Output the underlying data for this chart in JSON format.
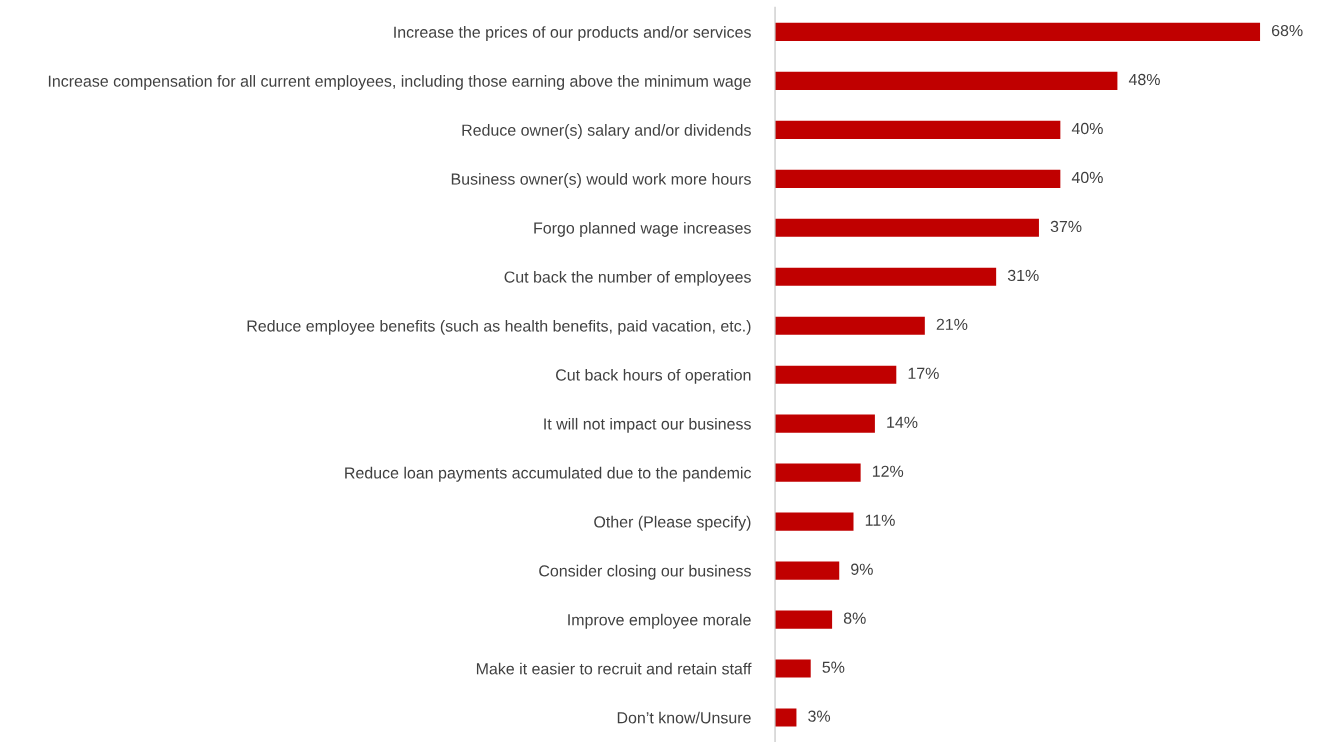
{
  "chart_data": {
    "type": "bar",
    "orientation": "horizontal",
    "categories": [
      "Increase the prices of our products and/or services",
      "Increase compensation for all current employees, including those earning above the minimum wage",
      "Reduce owner(s) salary and/or dividends",
      "Business owner(s) would work more hours",
      "Forgo planned wage increases",
      "Cut back the number of employees",
      "Reduce employee benefits (such as health benefits, paid vacation, etc.)",
      "Cut back hours of operation",
      "It will not impact our business",
      "Reduce loan payments accumulated due to the pandemic",
      "Other (Please specify)",
      "Consider closing our business",
      "Improve employee morale",
      "Make it easier to recruit and retain staff",
      "Don’t know/Unsure"
    ],
    "values": [
      68,
      48,
      40,
      40,
      37,
      31,
      21,
      17,
      14,
      12,
      11,
      9,
      8,
      5,
      3
    ],
    "value_labels": [
      "68%",
      "48%",
      "40%",
      "40%",
      "37%",
      "31%",
      "21%",
      "17%",
      "14%",
      "12%",
      "11%",
      "9%",
      "8%",
      "5%",
      "3%"
    ],
    "color": "#c00000",
    "legend": false,
    "tick_labels": "y"
  }
}
